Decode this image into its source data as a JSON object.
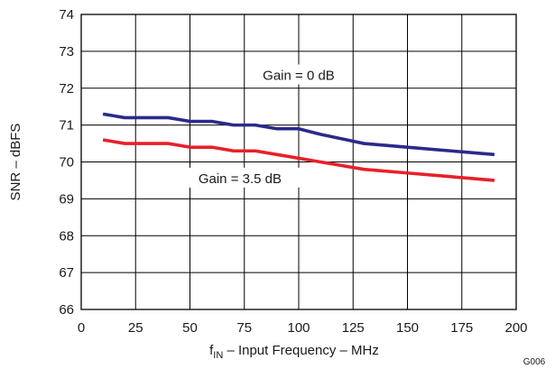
{
  "chart_data": {
    "type": "line",
    "xlabel_main": "f",
    "xlabel_sub": "IN",
    "xlabel_rest": " – Input Frequency – MHz",
    "ylabel": "SNR – dBFS",
    "figure_code": "G006",
    "xlim": [
      0,
      200
    ],
    "ylim": [
      66,
      74
    ],
    "x_ticks": [
      0,
      25,
      50,
      75,
      100,
      125,
      150,
      175,
      200
    ],
    "y_ticks": [
      66,
      67,
      68,
      69,
      70,
      71,
      72,
      73,
      74
    ],
    "grid": true,
    "series": [
      {
        "name": "Gain = 0 dB",
        "color": "#2a2a8c",
        "x": [
          10,
          20,
          30,
          40,
          50,
          60,
          70,
          80,
          90,
          100,
          110,
          130,
          150,
          170,
          190
        ],
        "y": [
          71.3,
          71.2,
          71.2,
          71.2,
          71.1,
          71.1,
          71.0,
          71.0,
          70.9,
          70.9,
          70.75,
          70.5,
          70.4,
          70.3,
          70.2
        ]
      },
      {
        "name": "Gain = 3.5 dB",
        "color": "#e8202a",
        "x": [
          10,
          20,
          30,
          40,
          50,
          60,
          70,
          80,
          90,
          100,
          110,
          130,
          150,
          170,
          190
        ],
        "y": [
          70.6,
          70.5,
          70.5,
          70.5,
          70.4,
          70.4,
          70.3,
          70.3,
          70.2,
          70.1,
          70.0,
          69.8,
          69.7,
          69.6,
          69.5
        ]
      }
    ]
  }
}
